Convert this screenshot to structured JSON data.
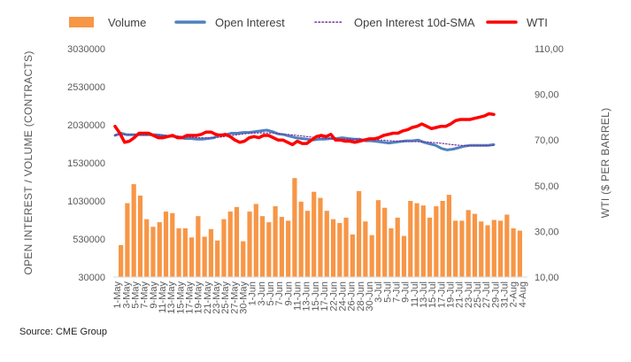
{
  "source_note": "Source: CME Group",
  "legend": [
    {
      "label": "Volume",
      "color": "#f79646",
      "kind": "bar"
    },
    {
      "label": "Open Interest",
      "color": "#4f81bd",
      "kind": "line"
    },
    {
      "label": "Open Interest 10d-SMA",
      "color": "#7030a0",
      "kind": "dotted"
    },
    {
      "label": "WTI",
      "color": "#ff0000",
      "kind": "line"
    }
  ],
  "chart_data": {
    "type": "bar",
    "ylabel": "OPEN INTEREST / VOLUME (CONTRACTS)",
    "y2label": "WTI ($ PER BARREL)",
    "ylim": [
      30000,
      3030000
    ],
    "y2lim": [
      10,
      110
    ],
    "y_ticks": [
      "3030000",
      "2530000",
      "2030000",
      "1530000",
      "1030000",
      "530000",
      "30000"
    ],
    "y_tick_values": [
      3030000,
      2530000,
      2030000,
      1530000,
      1030000,
      530000,
      30000
    ],
    "y2_ticks": [
      "110,00",
      "90,00",
      "70,00",
      "50,00",
      "30,00",
      "10,00"
    ],
    "y2_tick_values": [
      110,
      90,
      70,
      50,
      30,
      10
    ],
    "x_ticks": [
      "1-May",
      "3-May",
      "5-May",
      "7-May",
      "9-May",
      "11-May",
      "13-May",
      "15-May",
      "17-May",
      "19-May",
      "21-May",
      "23-May",
      "25-May",
      "27-May",
      "30-May",
      "1-Jun",
      "3-Jun",
      "5-Jun",
      "7-Jun",
      "9-Jun",
      "11-Jun",
      "13-Jun",
      "15-Jun",
      "17-Jun",
      "22-Jun",
      "24-Jun",
      "26-Jun",
      "28-Jun",
      "30-Jun",
      "3-Jul",
      "5-Jul",
      "7-Jul",
      "9-Jul",
      "11-Jul",
      "13-Jul",
      "15-Jul",
      "17-Jul",
      "19-Jul",
      "21-Jul",
      "23-Jul",
      "25-Jul",
      "27-Jul",
      "29-Jul",
      "31-Jul",
      "2-Aug",
      "4-Aug"
    ],
    "n_slots": 79,
    "series": [
      {
        "name": "Volume",
        "values": [
          450000,
          1000000,
          1250000,
          1100000,
          790000,
          690000,
          750000,
          890000,
          870000,
          670000,
          670000,
          550000,
          830000,
          560000,
          660000,
          510000,
          790000,
          890000,
          950000,
          500000,
          890000,
          990000,
          830000,
          750000,
          960000,
          820000,
          770000,
          1330000,
          1020000,
          900000,
          1150000,
          1070000,
          900000,
          790000,
          740000,
          810000,
          590000,
          1160000,
          760000,
          580000,
          1040000,
          940000,
          670000,
          810000,
          570000,
          1030000,
          1000000,
          970000,
          810000,
          960000,
          1030000,
          1110000,
          770000,
          770000,
          910000,
          860000,
          760000,
          710000,
          780000,
          770000,
          850000,
          670000,
          640000
        ]
      },
      {
        "name": "Open Interest",
        "values": [
          1890000,
          1920000,
          1900000,
          1900000,
          1900000,
          1900000,
          1900000,
          1900000,
          1890000,
          1880000,
          1880000,
          1870000,
          1850000,
          1850000,
          1840000,
          1840000,
          1850000,
          1860000,
          1900000,
          1900000,
          1920000,
          1920000,
          1930000,
          1930000,
          1940000,
          1950000,
          1960000,
          1940000,
          1910000,
          1900000,
          1880000,
          1860000,
          1850000,
          1840000,
          1830000,
          1840000,
          1840000,
          1850000,
          1850000,
          1860000,
          1850000,
          1840000,
          1840000,
          1820000,
          1820000,
          1810000,
          1800000,
          1790000,
          1800000,
          1810000,
          1820000,
          1820000,
          1830000,
          1800000,
          1780000,
          1760000,
          1720000,
          1700000,
          1710000,
          1730000,
          1750000,
          1760000,
          1760000,
          1760000,
          1760000,
          1770000
        ]
      },
      {
        "name": "Open Interest 10d-SMA",
        "values": [
          1895000,
          1900000,
          1902000,
          1901000,
          1900000,
          1899000,
          1897000,
          1894000,
          1891000,
          1887000,
          1882000,
          1876000,
          1870000,
          1864000,
          1860000,
          1858000,
          1860000,
          1866000,
          1876000,
          1888000,
          1900000,
          1910000,
          1918000,
          1922000,
          1924000,
          1923000,
          1919000,
          1913000,
          1905000,
          1897000,
          1888000,
          1879000,
          1870000,
          1862000,
          1855000,
          1850000,
          1846000,
          1844000,
          1843000,
          1842000,
          1841000,
          1838000,
          1835000,
          1831000,
          1826000,
          1821000,
          1816000,
          1812000,
          1810000,
          1809000,
          1807000,
          1804000,
          1798000,
          1790000,
          1781000,
          1771000,
          1763000,
          1758000,
          1755000,
          1755000,
          1756000,
          1757000,
          1758000
        ]
      },
      {
        "name": "WTI",
        "values": [
          76,
          73,
          69,
          69.5,
          71,
          73,
          73,
          73,
          72,
          71,
          71,
          71.5,
          72,
          71,
          71,
          72,
          72,
          72,
          72.5,
          73.5,
          73.5,
          72.5,
          72,
          72.5,
          71.5,
          70,
          69,
          69.5,
          71,
          71.5,
          71,
          72,
          72,
          71,
          70,
          70,
          69,
          68,
          69.5,
          68.5,
          68.5,
          70,
          71.5,
          72,
          71.5,
          72.5,
          70,
          70,
          69.5,
          69.5,
          69,
          69.5,
          70,
          70.5,
          70.5,
          71,
          72,
          72.5,
          73,
          73,
          74,
          74.5,
          75.5,
          76,
          77,
          76,
          75,
          75.5,
          76,
          76,
          77,
          78.5,
          79,
          79,
          79,
          79.5,
          80,
          80.5,
          81.5,
          81.2
        ]
      }
    ]
  }
}
